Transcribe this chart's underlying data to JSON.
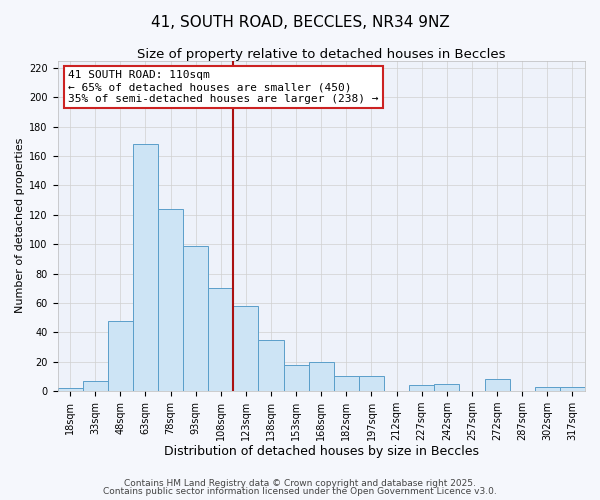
{
  "title": "41, SOUTH ROAD, BECCLES, NR34 9NZ",
  "subtitle": "Size of property relative to detached houses in Beccles",
  "xlabel": "Distribution of detached houses by size in Beccles",
  "ylabel": "Number of detached properties",
  "bar_color": "#cde4f5",
  "bar_edge_color": "#5a9eca",
  "grid_color": "#d0d0d0",
  "bg_color": "#eef2fa",
  "fig_color": "#f5f7fc",
  "categories": [
    "18sqm",
    "33sqm",
    "48sqm",
    "63sqm",
    "78sqm",
    "93sqm",
    "108sqm",
    "123sqm",
    "138sqm",
    "153sqm",
    "168sqm",
    "182sqm",
    "197sqm",
    "212sqm",
    "227sqm",
    "242sqm",
    "257sqm",
    "272sqm",
    "287sqm",
    "302sqm",
    "317sqm"
  ],
  "values": [
    2,
    7,
    48,
    168,
    124,
    99,
    70,
    58,
    35,
    18,
    20,
    10,
    10,
    0,
    4,
    5,
    0,
    8,
    0,
    3,
    3
  ],
  "ylim": [
    0,
    225
  ],
  "yticks": [
    0,
    20,
    40,
    60,
    80,
    100,
    120,
    140,
    160,
    180,
    200,
    220
  ],
  "vline_x_index": 6,
  "vline_color": "#aa1111",
  "annotation_title": "41 SOUTH ROAD: 110sqm",
  "annotation_line1": "← 65% of detached houses are smaller (450)",
  "annotation_line2": "35% of semi-detached houses are larger (238) →",
  "annotation_box_color": "#ffffff",
  "annotation_border_color": "#cc2222",
  "footer1": "Contains HM Land Registry data © Crown copyright and database right 2025.",
  "footer2": "Contains public sector information licensed under the Open Government Licence v3.0.",
  "title_fontsize": 11,
  "subtitle_fontsize": 9.5,
  "xlabel_fontsize": 9,
  "ylabel_fontsize": 8,
  "tick_fontsize": 7,
  "annotation_fontsize": 8,
  "footer_fontsize": 6.5
}
